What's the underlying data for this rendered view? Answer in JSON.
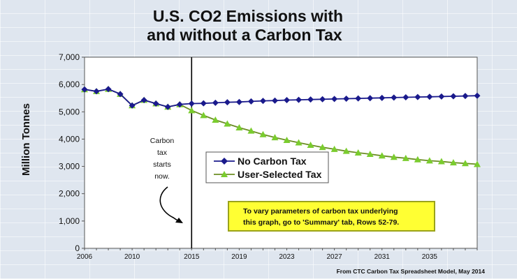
{
  "chart_data": {
    "type": "line",
    "title": [
      "U.S. CO2 Emissions with",
      "and without a Carbon Tax"
    ],
    "ylabel": "Million Tonnes",
    "xlabel": "",
    "ylim": [
      0,
      7000
    ],
    "y_ticks": [
      "0",
      "1,000",
      "2,000",
      "3,000",
      "4,000",
      "5,000",
      "6,000",
      "7,000"
    ],
    "x_ticks": [
      "2006",
      "2010",
      "2015",
      "2019",
      "2023",
      "2027",
      "2031",
      "2035"
    ],
    "x": [
      2006,
      2007,
      2008,
      2009,
      2010,
      2011,
      2012,
      2013,
      2014,
      2015,
      2016,
      2017,
      2018,
      2019,
      2020,
      2021,
      2022,
      2023,
      2024,
      2025,
      2026,
      2027,
      2028,
      2029,
      2030,
      2031,
      2032,
      2033,
      2034,
      2035,
      2036,
      2037,
      2038,
      2039
    ],
    "series": [
      {
        "name": "No Carbon Tax",
        "color": "#1a1a8c",
        "marker": "diamond",
        "values": [
          5820,
          5750,
          5830,
          5650,
          5230,
          5430,
          5300,
          5180,
          5270,
          5300,
          5310,
          5330,
          5350,
          5360,
          5380,
          5400,
          5410,
          5430,
          5440,
          5450,
          5460,
          5470,
          5480,
          5490,
          5500,
          5510,
          5520,
          5530,
          5540,
          5550,
          5560,
          5570,
          5580,
          5590
        ]
      },
      {
        "name": "User-Selected Tax",
        "color": "#7acc2e",
        "line_color": "#6b8e23",
        "marker": "triangle",
        "values": [
          5820,
          5750,
          5830,
          5650,
          5230,
          5430,
          5300,
          5180,
          5270,
          5050,
          4870,
          4700,
          4560,
          4420,
          4300,
          4170,
          4060,
          3960,
          3870,
          3780,
          3700,
          3630,
          3560,
          3500,
          3450,
          3390,
          3340,
          3300,
          3250,
          3210,
          3180,
          3140,
          3110,
          3080
        ]
      }
    ],
    "vertical_marker_x": 2015,
    "legend_position": "center",
    "annotation": "Carbon tax starts now.",
    "annotation_lines": [
      "Carbon",
      "tax",
      "starts",
      "now."
    ],
    "note_lines": [
      "To vary parameters of carbon tax underlying",
      "this graph, go to 'Summary' tab, Rows 52-79."
    ],
    "note_color": "#ffff33",
    "note_border_color": "#9aa31a",
    "source": "From CTC Carbon Tax Spreadsheet Model, May 2014",
    "grid": false,
    "plot_bg": "#ffffff"
  }
}
